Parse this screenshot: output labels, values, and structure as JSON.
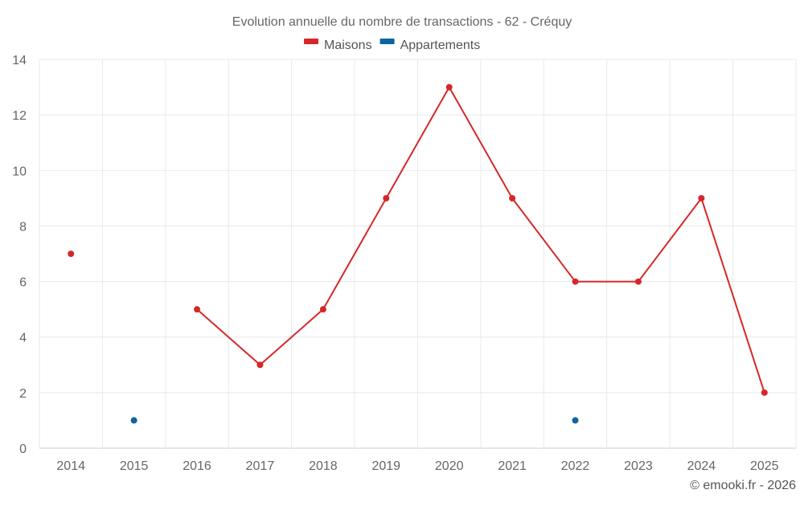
{
  "chart_data": {
    "type": "line",
    "title": "Evolution annuelle du nombre de transactions - 62 - Créquy",
    "categories": [
      "2014",
      "2015",
      "2016",
      "2017",
      "2018",
      "2019",
      "2020",
      "2021",
      "2022",
      "2023",
      "2024",
      "2025"
    ],
    "ylim": [
      0,
      14
    ],
    "yticks": [
      0,
      2,
      4,
      6,
      8,
      10,
      12,
      14
    ],
    "grid": true,
    "legend_position": "top-center",
    "series": [
      {
        "name": "Maisons",
        "color": "#d62728",
        "values": [
          7,
          null,
          5,
          3,
          5,
          9,
          13,
          9,
          6,
          6,
          9,
          2
        ]
      },
      {
        "name": "Appartements",
        "color": "#0c64a0",
        "values": [
          null,
          1,
          null,
          null,
          null,
          null,
          null,
          null,
          1,
          null,
          null,
          null
        ]
      }
    ]
  },
  "credit": "© emooki.fr - 2026"
}
